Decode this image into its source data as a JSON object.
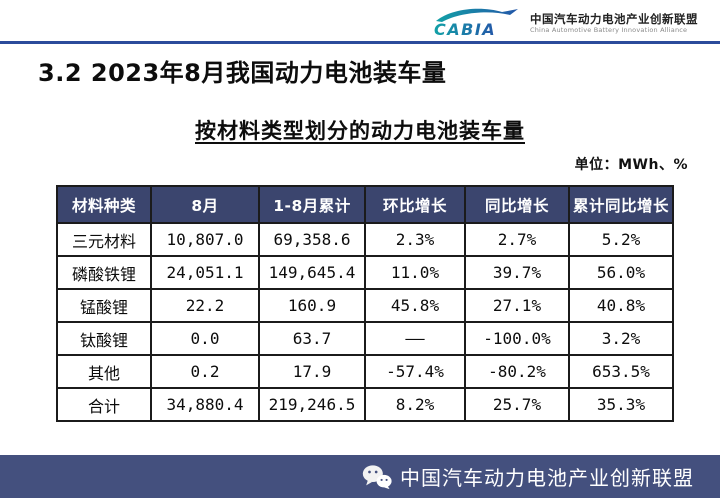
{
  "header": {
    "logo_brand": "CABIA",
    "logo_org_cn": "中国汽车动力电池产业创新联盟",
    "logo_org_en": "China Automotive Battery Innovation Alliance"
  },
  "title": "3.2 2023年8月我国动力电池装车量",
  "subtitle": "按材料类型划分的动力电池装车量",
  "unit_label": "单位：MWh、%",
  "table": {
    "headers": [
      "材料种类",
      "8月",
      "1-8月累计",
      "环比增长",
      "同比增长",
      "累计同比增长"
    ],
    "rows": [
      [
        "三元材料",
        "10,807.0",
        "69,358.6",
        "2.3%",
        "2.7%",
        "5.2%"
      ],
      [
        "磷酸铁锂",
        "24,051.1",
        "149,645.4",
        "11.0%",
        "39.7%",
        "56.0%"
      ],
      [
        "锰酸锂",
        "22.2",
        "160.9",
        "45.8%",
        "27.1%",
        "40.8%"
      ],
      [
        "钛酸锂",
        "0.0",
        "63.7",
        "——",
        "-100.0%",
        "3.2%"
      ],
      [
        "其他",
        "0.2",
        "17.9",
        "-57.4%",
        "-80.2%",
        "653.5%"
      ],
      [
        "合计",
        "34,880.4",
        "219,246.5",
        "8.2%",
        "25.7%",
        "35.3%"
      ]
    ]
  },
  "footer": {
    "org": "中国汽车动力电池产业创新联盟",
    "icon": "wechat-icon"
  },
  "colors": {
    "divider_blue": "#2B4B9B",
    "table_header_bg": "#3B456E",
    "footer_bg": "#44507E",
    "logo_teal": "#12A1A7",
    "logo_blue": "#2356A8"
  }
}
